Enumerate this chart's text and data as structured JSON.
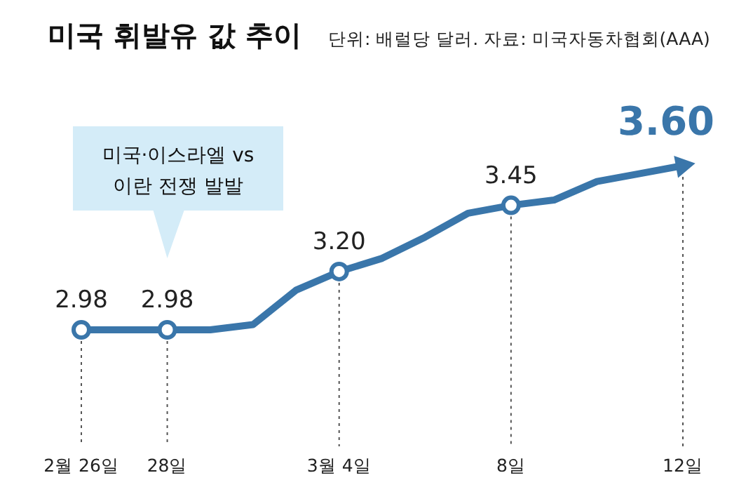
{
  "chart_data": {
    "type": "line",
    "title": "미국 휘발유 값 추이",
    "subtitle": "단위: 배럴당 달러. 자료: 미국자동차협회(AAA)",
    "categories": [
      "2월 26일",
      null,
      "28일",
      null,
      null,
      null,
      "3월 4일",
      null,
      null,
      null,
      "8일",
      null,
      null,
      null,
      "12일"
    ],
    "values": [
      2.98,
      2.98,
      2.98,
      2.98,
      3.0,
      3.13,
      3.2,
      3.25,
      3.33,
      3.42,
      3.45,
      3.47,
      3.54,
      3.57,
      3.6
    ],
    "value_labels": [
      "2.98",
      null,
      "2.98",
      null,
      null,
      null,
      "3.20",
      null,
      null,
      null,
      "3.45",
      null,
      null,
      null,
      "3.60"
    ],
    "color": "#3a76aa",
    "grid": "x",
    "annotations": [
      "미국·이스라엘 vs 이란 전쟁 발발"
    ]
  }
}
